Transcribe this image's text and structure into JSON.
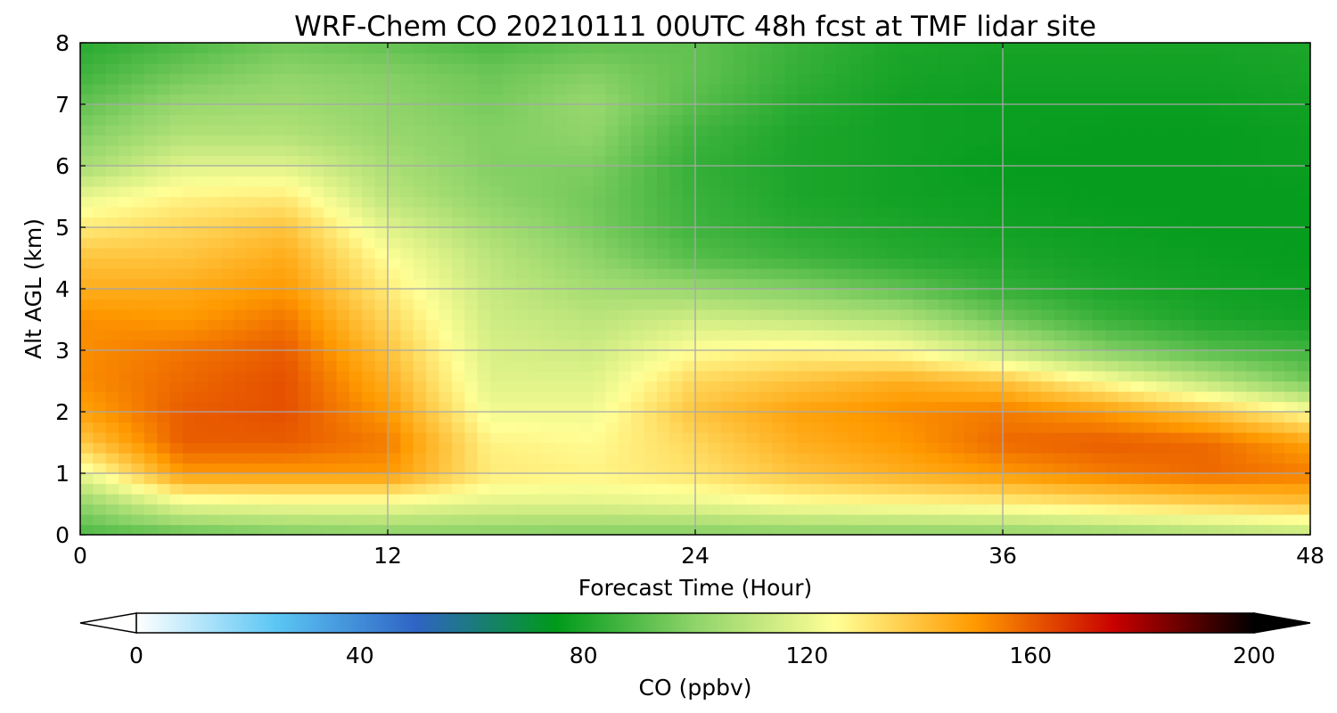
{
  "chart_data": {
    "type": "heatmap",
    "title": "WRF-Chem CO 20210111 00UTC 48h fcst at TMF lidar site",
    "xlabel": "Forecast Time (Hour)",
    "ylabel": "Alt AGL (km)",
    "xlim": [
      0,
      48
    ],
    "ylim": [
      0,
      8
    ],
    "x_ticks": [
      "0",
      "12",
      "24",
      "36",
      "48"
    ],
    "y_ticks": [
      "0",
      "1",
      "2",
      "3",
      "4",
      "5",
      "6",
      "7",
      "8"
    ],
    "grid": true,
    "colorbar": {
      "label": "CO  (ppbv)",
      "range": [
        0,
        200
      ],
      "ticks": [
        "0",
        "40",
        "80",
        "120",
        "160",
        "200"
      ],
      "extend": "both",
      "colors": [
        "#ffffff",
        "#5bc6f4",
        "#2f64c4",
        "#009a1a",
        "#8fd46a",
        "#ffff96",
        "#ff9a00",
        "#c80000",
        "#000000"
      ]
    },
    "hours": [
      0,
      4,
      8,
      12,
      16,
      20,
      24,
      28,
      32,
      36,
      40,
      44,
      48
    ],
    "altitudes_km": [
      0.0,
      0.5,
      1.0,
      1.5,
      2.0,
      2.5,
      3.0,
      3.5,
      4.0,
      4.5,
      5.0,
      5.5,
      6.0,
      6.5,
      7.0,
      7.5,
      8.0
    ],
    "co_ppbv": [
      [
        88,
        92,
        96,
        98,
        98,
        97,
        97,
        98,
        98,
        99,
        102,
        106,
        110
      ],
      [
        100,
        120,
        122,
        122,
        118,
        118,
        120,
        124,
        126,
        128,
        132,
        136,
        140
      ],
      [
        120,
        150,
        150,
        150,
        130,
        128,
        132,
        140,
        145,
        150,
        155,
        158,
        155
      ],
      [
        138,
        160,
        160,
        155,
        128,
        126,
        135,
        145,
        150,
        158,
        160,
        158,
        148
      ],
      [
        148,
        160,
        162,
        150,
        122,
        122,
        140,
        148,
        152,
        155,
        150,
        140,
        125
      ],
      [
        152,
        158,
        162,
        145,
        118,
        118,
        135,
        140,
        145,
        140,
        125,
        110,
        95
      ],
      [
        152,
        156,
        160,
        140,
        116,
        114,
        125,
        128,
        125,
        112,
        98,
        90,
        86
      ],
      [
        152,
        150,
        156,
        135,
        114,
        110,
        115,
        112,
        108,
        95,
        85,
        80,
        78
      ],
      [
        145,
        146,
        150,
        130,
        112,
        105,
        102,
        98,
        92,
        84,
        80,
        78,
        77
      ],
      [
        140,
        140,
        146,
        125,
        110,
        100,
        90,
        86,
        82,
        80,
        78,
        77,
        76
      ],
      [
        130,
        135,
        140,
        118,
        105,
        96,
        86,
        82,
        80,
        78,
        77,
        76,
        76
      ],
      [
        120,
        128,
        130,
        110,
        100,
        95,
        85,
        80,
        78,
        77,
        76,
        76,
        76
      ],
      [
        105,
        118,
        118,
        106,
        98,
        97,
        84,
        80,
        78,
        76,
        76,
        76,
        77
      ],
      [
        98,
        108,
        108,
        102,
        98,
        100,
        86,
        80,
        78,
        77,
        76,
        76,
        77
      ],
      [
        92,
        102,
        104,
        100,
        96,
        102,
        90,
        82,
        78,
        77,
        77,
        77,
        78
      ],
      [
        86,
        95,
        100,
        98,
        94,
        98,
        92,
        84,
        79,
        78,
        78,
        78,
        79
      ],
      [
        82,
        88,
        95,
        92,
        88,
        92,
        92,
        85,
        80,
        79,
        79,
        79,
        80
      ]
    ]
  }
}
